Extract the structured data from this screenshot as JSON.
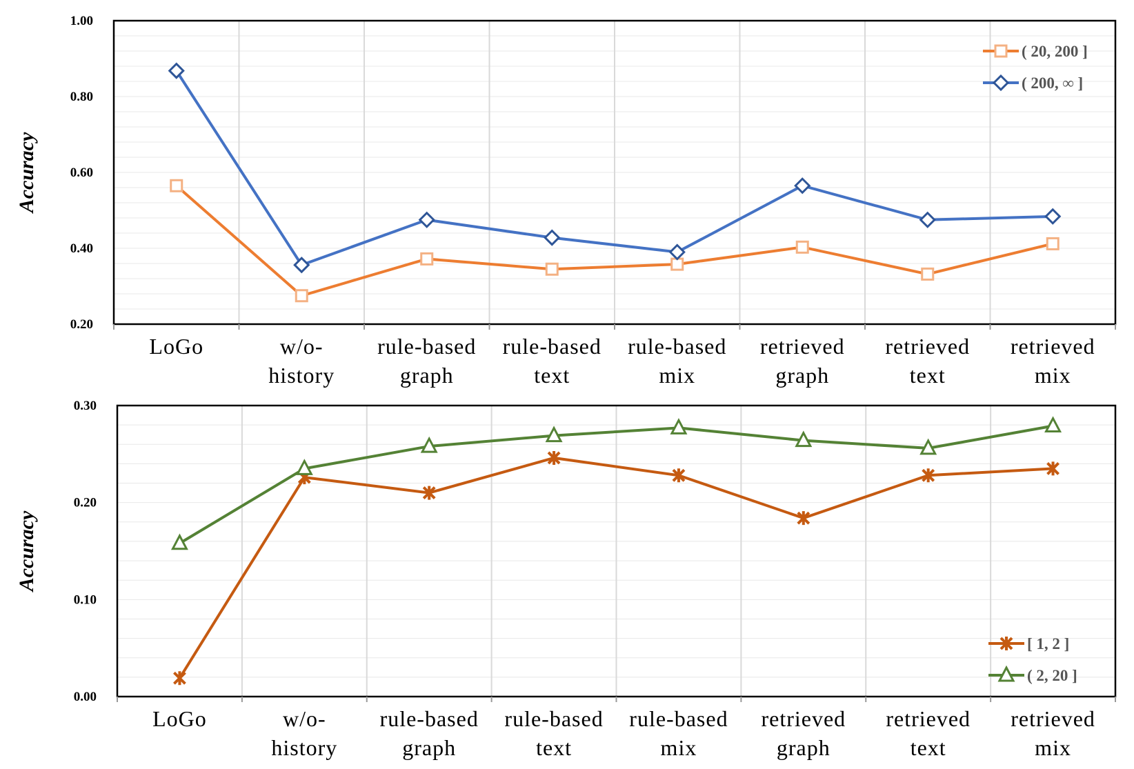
{
  "chart_data": [
    {
      "type": "line",
      "ylabel": "Accuracy",
      "ylim": [
        0.2,
        1.0
      ],
      "yticks": [
        "0.20",
        "0.40",
        "0.60",
        "0.80",
        "1.00"
      ],
      "categories": [
        [
          "LoGo"
        ],
        [
          "w/o-",
          "history"
        ],
        [
          "rule-based",
          "graph"
        ],
        [
          "rule-based",
          "text"
        ],
        [
          "rule-based",
          "mix"
        ],
        [
          "retrieved",
          "graph"
        ],
        [
          "retrieved",
          "text"
        ],
        [
          "retrieved",
          "mix"
        ]
      ],
      "legend_position": "top-right",
      "grid": true,
      "series": [
        {
          "name": "( 20, 200 ]",
          "marker": "square",
          "color": "#ED7D31",
          "marker_stroke": "#F4B183",
          "values": [
            0.565,
            0.275,
            0.372,
            0.345,
            0.358,
            0.403,
            0.332,
            0.412
          ]
        },
        {
          "name": "( 200, ∞ ]",
          "marker": "diamond",
          "color": "#4472C4",
          "marker_stroke": "#2E5597",
          "values": [
            0.868,
            0.356,
            0.475,
            0.428,
            0.39,
            0.565,
            0.475,
            0.484
          ]
        }
      ]
    },
    {
      "type": "line",
      "ylabel": "Accuracy",
      "ylim": [
        0.0,
        0.3
      ],
      "yticks": [
        "0.00",
        "0.10",
        "0.20",
        "0.30"
      ],
      "categories": [
        [
          "LoGo"
        ],
        [
          "w/o-",
          "history"
        ],
        [
          "rule-based",
          "graph"
        ],
        [
          "rule-based",
          "text"
        ],
        [
          "rule-based",
          "mix"
        ],
        [
          "retrieved",
          "graph"
        ],
        [
          "retrieved",
          "text"
        ],
        [
          "retrieved",
          "mix"
        ]
      ],
      "legend_position": "bottom-right",
      "grid": true,
      "series": [
        {
          "name": "[ 1, 2 ]",
          "marker": "star",
          "color": "#C55A11",
          "marker_stroke": "#C55A11",
          "values": [
            0.019,
            0.226,
            0.21,
            0.246,
            0.228,
            0.184,
            0.228,
            0.235
          ]
        },
        {
          "name": "( 2, 20 ]",
          "marker": "triangle",
          "color": "#548235",
          "marker_stroke": "#548235",
          "values": [
            0.158,
            0.235,
            0.258,
            0.269,
            0.277,
            0.264,
            0.256,
            0.279
          ]
        }
      ]
    }
  ]
}
